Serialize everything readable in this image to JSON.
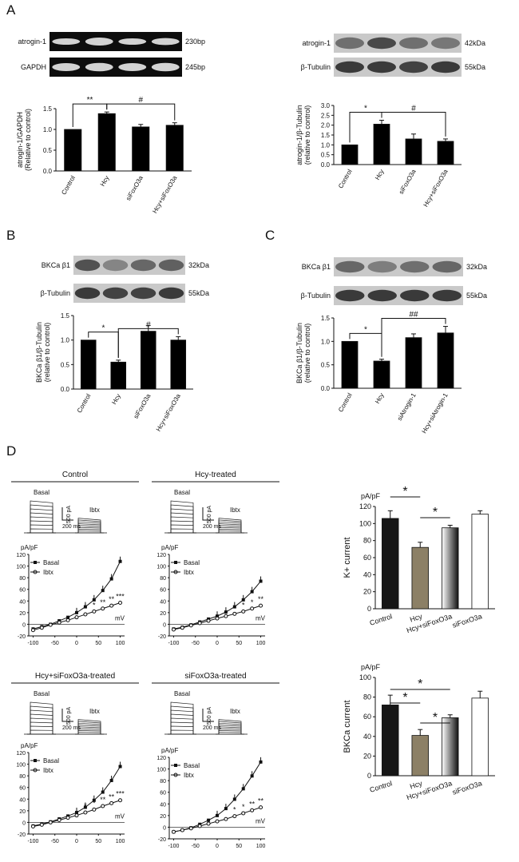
{
  "panels": {
    "A": "A",
    "B": "B",
    "C": "C",
    "D": "D"
  },
  "blotA1": {
    "labels": [
      "atrogin-1",
      "GAPDH"
    ],
    "sizes": [
      "230bp",
      "245bp"
    ]
  },
  "blotA2": {
    "labels": [
      "atrogin-1",
      "β-Tubulin"
    ],
    "sizes": [
      "42kDa",
      "55kDa"
    ]
  },
  "blotB": {
    "labels": [
      "BKCa β1",
      "β-Tubulin"
    ],
    "sizes": [
      "32kDa",
      "55kDa"
    ]
  },
  "blotC": {
    "labels": [
      "BKCa β1",
      "β-Tubulin"
    ],
    "sizes": [
      "32kDa",
      "55kDa"
    ]
  },
  "traces": {
    "titles": [
      "Control",
      "Hcy-treated",
      "Hcy+siFoxO3a-treated",
      "siFoxO3a-treated"
    ],
    "basal": "Basal",
    "ibtx": "Ibtx",
    "pa": "500 pA",
    "ms": "200 ms"
  },
  "iv": {
    "unit_y": "pA/pF",
    "unit_x": "mV",
    "legend_basal": "Basal",
    "legend_ibtx": "Ibtx"
  },
  "chart_data": [
    {
      "id": "A1",
      "type": "bar",
      "ylabel": "atrogin-1/GAPDH (Relative to control)",
      "categories": [
        "Control",
        "Hcy",
        "siFoxO3a",
        "Hcy+siFoxO3a"
      ],
      "values": [
        1.0,
        1.38,
        1.06,
        1.1
      ],
      "errors": [
        0,
        0.04,
        0.06,
        0.06
      ],
      "ylim": [
        0,
        1.5
      ],
      "yticks": [
        "0.0",
        "0.5",
        "1.0",
        "1.5"
      ],
      "sig": [
        {
          "a": 0,
          "b": 1,
          "label": "**"
        },
        {
          "a": 1,
          "b": 3,
          "label": "#"
        }
      ]
    },
    {
      "id": "A2",
      "type": "bar",
      "ylabel": "atrogin-1/β-Tubulin (relative to control)",
      "categories": [
        "Control",
        "Hcy",
        "siFoxO3a",
        "Hcy+siFoxO3a"
      ],
      "values": [
        1.0,
        2.05,
        1.3,
        1.18
      ],
      "errors": [
        0,
        0.2,
        0.25,
        0.12
      ],
      "ylim": [
        0,
        3.0
      ],
      "yticks": [
        "0.0",
        "0.5",
        "1.0",
        "1.5",
        "2.0",
        "2.5",
        "3.0"
      ],
      "sig": [
        {
          "a": 0,
          "b": 1,
          "label": "*"
        },
        {
          "a": 1,
          "b": 3,
          "label": "#"
        }
      ]
    },
    {
      "id": "B",
      "type": "bar",
      "ylabel": "BKCa β1/β-Tubulin (relative to control)",
      "categories": [
        "Control",
        "Hcy",
        "siFoxO3a",
        "Hcy+siFoxO3a"
      ],
      "values": [
        1.0,
        0.55,
        1.18,
        1.0
      ],
      "errors": [
        0,
        0.04,
        0.12,
        0.07
      ],
      "ylim": [
        0,
        1.5
      ],
      "yticks": [
        "0.0",
        "0.5",
        "1.0",
        "1.5"
      ],
      "sig": [
        {
          "a": 0,
          "b": 1,
          "label": "*"
        },
        {
          "a": 1,
          "b": 3,
          "label": "#"
        }
      ]
    },
    {
      "id": "C",
      "type": "bar",
      "ylabel": "BKCa β1/β-Tubulin (relative to control)",
      "categories": [
        "Control",
        "Hcy",
        "siAtrogin-1",
        "Hcy+siAtrogin-1"
      ],
      "values": [
        1.0,
        0.58,
        1.08,
        1.18
      ],
      "errors": [
        0,
        0.04,
        0.08,
        0.14
      ],
      "ylim": [
        0,
        1.5
      ],
      "yticks": [
        "0.0",
        "0.5",
        "1.0",
        "1.5"
      ],
      "sig": [
        {
          "a": 0,
          "b": 1,
          "label": "*"
        },
        {
          "a": 1,
          "b": 3,
          "label": "##"
        }
      ]
    },
    {
      "id": "D1",
      "type": "bar",
      "unit": "pA/pF",
      "ylabel": "K+ current",
      "categories": [
        "Control",
        "Hcy",
        "Hcy+siFoxO3a",
        "siFoxO3a"
      ],
      "values": [
        106,
        72,
        95,
        111
      ],
      "errors": [
        9,
        6,
        3,
        4
      ],
      "ylim": [
        0,
        120
      ],
      "yticks": [
        "0",
        "20",
        "40",
        "60",
        "80",
        "100",
        "120"
      ],
      "sig": [
        {
          "a": 0,
          "b": 1,
          "label": "*"
        },
        {
          "a": 1,
          "b": 2,
          "label": "*"
        }
      ]
    },
    {
      "id": "D2",
      "type": "bar",
      "unit": "pA/pF",
      "ylabel": "BKCa current",
      "categories": [
        "Control",
        "Hcy",
        "Hcy+siFoxO3a",
        "siFoxO3a"
      ],
      "values": [
        72,
        41,
        59,
        79
      ],
      "errors": [
        10,
        6,
        3,
        7
      ],
      "ylim": [
        0,
        100
      ],
      "yticks": [
        "0",
        "20",
        "40",
        "60",
        "80",
        "100"
      ],
      "sig": [
        {
          "a": 0,
          "b": 1,
          "label": "*"
        },
        {
          "a": 0,
          "b": 2,
          "label": "*"
        },
        {
          "a": 1,
          "b": 2,
          "label": "*"
        }
      ]
    },
    {
      "id": "IV1",
      "type": "line",
      "title": "Control",
      "x": [
        -100,
        -80,
        -60,
        -40,
        -20,
        0,
        20,
        40,
        60,
        80,
        100
      ],
      "xticks": [
        "-100",
        "-50",
        "0",
        "50",
        "100"
      ],
      "ylim": [
        -20,
        120
      ],
      "yticks": [
        "-20",
        "0",
        "20",
        "40",
        "60",
        "80",
        "100",
        "120"
      ],
      "series": [
        {
          "name": "Basal",
          "values": [
            -8,
            -4,
            0,
            6,
            12,
            20,
            30,
            42,
            58,
            78,
            108
          ]
        },
        {
          "name": "Ibtx",
          "values": [
            -10,
            -6,
            -1,
            3,
            7,
            12,
            17,
            22,
            27,
            32,
            37
          ]
        }
      ],
      "sig": [
        "*",
        "*",
        "**",
        "**",
        "***"
      ]
    },
    {
      "id": "IV2",
      "type": "line",
      "title": "Hcy-treated",
      "x": [
        -100,
        -80,
        -60,
        -40,
        -20,
        0,
        20,
        40,
        60,
        80,
        100
      ],
      "xticks": [
        "-100",
        "-50",
        "0",
        "50",
        "100"
      ],
      "ylim": [
        -20,
        120
      ],
      "yticks": [
        "-20",
        "0",
        "20",
        "40",
        "60",
        "80",
        "100",
        "120"
      ],
      "series": [
        {
          "name": "Basal",
          "values": [
            -8,
            -5,
            -1,
            4,
            9,
            14,
            21,
            30,
            42,
            56,
            74
          ]
        },
        {
          "name": "Ibtx",
          "values": [
            -9,
            -6,
            -2,
            2,
            6,
            10,
            14,
            18,
            22,
            27,
            32
          ]
        }
      ],
      "sig": [
        "*",
        "*",
        "**"
      ]
    },
    {
      "id": "IV3",
      "type": "line",
      "title": "Hcy+siFoxO3a-treated",
      "x": [
        -100,
        -80,
        -60,
        -40,
        -20,
        0,
        20,
        40,
        60,
        80,
        100
      ],
      "xticks": [
        "-100",
        "-50",
        "0",
        "50",
        "100"
      ],
      "ylim": [
        -20,
        120
      ],
      "yticks": [
        "-20",
        "0",
        "20",
        "40",
        "60",
        "80",
        "100",
        "120"
      ],
      "series": [
        {
          "name": "Basal",
          "values": [
            -6,
            -3,
            1,
            6,
            11,
            17,
            26,
            38,
            52,
            72,
            96
          ]
        },
        {
          "name": "Ibtx",
          "values": [
            -7,
            -4,
            0,
            4,
            8,
            12,
            17,
            22,
            28,
            33,
            38
          ]
        }
      ],
      "sig": [
        "*",
        "*",
        "**",
        "**",
        "***"
      ]
    },
    {
      "id": "IV4",
      "type": "line",
      "title": "siFoxO3a-treated",
      "x": [
        -100,
        -80,
        -60,
        -40,
        -20,
        0,
        20,
        40,
        60,
        80,
        100
      ],
      "xticks": [
        "-100",
        "-50",
        "0",
        "50",
        "100"
      ],
      "ylim": [
        -20,
        120
      ],
      "yticks": [
        "-20",
        "0",
        "20",
        "40",
        "60",
        "80",
        "100",
        "120"
      ],
      "series": [
        {
          "name": "Basal",
          "values": [
            -8,
            -5,
            -1,
            5,
            12,
            20,
            32,
            48,
            66,
            88,
            112
          ]
        },
        {
          "name": "Ibtx",
          "values": [
            -8,
            -5,
            -2,
            2,
            6,
            10,
            14,
            19,
            24,
            29,
            34
          ]
        }
      ],
      "sig": [
        "*",
        "*",
        "**",
        "**"
      ]
    }
  ]
}
